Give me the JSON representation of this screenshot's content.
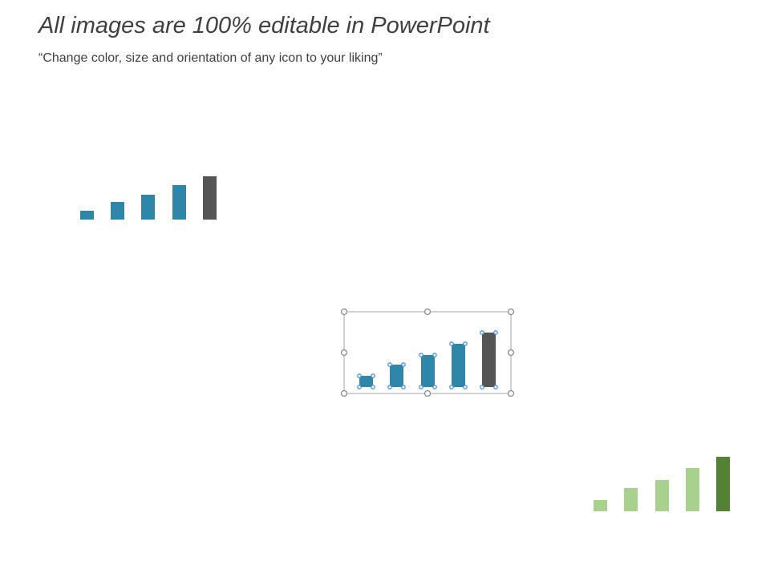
{
  "header": {
    "title": "All images are 100% editable in PowerPoint",
    "subtitle": "“Change color, size and orientation of any icon to your liking”"
  }
}
